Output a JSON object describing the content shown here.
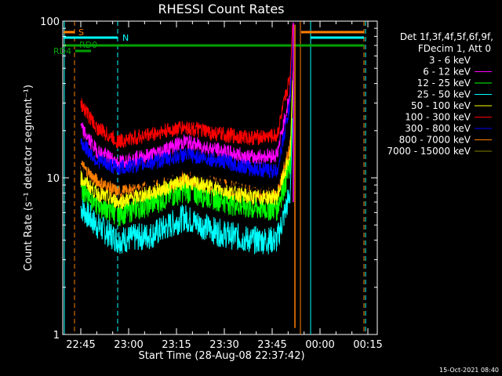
{
  "chart_data": {
    "type": "line",
    "title": "RHESSI Count Rates",
    "xlabel": "Start Time (28-Aug-08 22:37:42)",
    "ylabel": "Count Rate (s⁻¹ detector segment⁻¹)",
    "y_scale": "log",
    "ylim": [
      1,
      100
    ],
    "y_ticks": [
      {
        "value": 1,
        "label": "1"
      },
      {
        "value": 10,
        "label": "10"
      },
      {
        "value": 100,
        "label": "100"
      }
    ],
    "x_ticks": [
      "22:45",
      "23:00",
      "23:15",
      "23:30",
      "23:45",
      "00:00",
      "00:15"
    ],
    "legend_header": [
      "Det 1f,3f,4f,5f,6f,9f,",
      "FDecim 1, Att 0"
    ],
    "series": [
      {
        "name": "3 - 6 keV",
        "color": "#000000",
        "points": [
          [
            0.03,
            11
          ],
          [
            0.1,
            8
          ],
          [
            0.2,
            7
          ],
          [
            0.35,
            8.5
          ],
          [
            0.5,
            11
          ],
          [
            0.65,
            9
          ],
          [
            0.8,
            8
          ],
          [
            0.92,
            9
          ],
          [
            0.98,
            20
          ]
        ]
      },
      {
        "name": "6 - 12 keV",
        "color": "#ff00ff",
        "points": [
          [
            0.03,
            21
          ],
          [
            0.1,
            15
          ],
          [
            0.2,
            12.5
          ],
          [
            0.35,
            14
          ],
          [
            0.5,
            17
          ],
          [
            0.65,
            15
          ],
          [
            0.8,
            13.5
          ],
          [
            0.92,
            14
          ],
          [
            0.98,
            35
          ]
        ]
      },
      {
        "name": "12 - 25 keV",
        "color": "#00ff00",
        "points": [
          [
            0.03,
            9
          ],
          [
            0.1,
            7
          ],
          [
            0.2,
            6
          ],
          [
            0.35,
            7
          ],
          [
            0.5,
            8.5
          ],
          [
            0.65,
            7.5
          ],
          [
            0.8,
            6.5
          ],
          [
            0.92,
            6.5
          ],
          [
            0.98,
            12
          ]
        ]
      },
      {
        "name": "25 - 50 keV",
        "color": "#00ffff",
        "points": [
          [
            0.03,
            6.5
          ],
          [
            0.1,
            5
          ],
          [
            0.2,
            4
          ],
          [
            0.35,
            4.3
          ],
          [
            0.5,
            5.6
          ],
          [
            0.65,
            4.5
          ],
          [
            0.8,
            4
          ],
          [
            0.92,
            4
          ],
          [
            0.98,
            8
          ]
        ]
      },
      {
        "name": "50 - 100 keV",
        "color": "#ffff00",
        "points": [
          [
            0.03,
            10
          ],
          [
            0.1,
            8
          ],
          [
            0.2,
            7
          ],
          [
            0.35,
            8
          ],
          [
            0.5,
            9.5
          ],
          [
            0.65,
            8.5
          ],
          [
            0.8,
            7.5
          ],
          [
            0.92,
            7.5
          ],
          [
            0.98,
            14
          ]
        ]
      },
      {
        "name": "100 - 300 keV",
        "color": "#ff0000",
        "points": [
          [
            0.03,
            30
          ],
          [
            0.1,
            21
          ],
          [
            0.2,
            17
          ],
          [
            0.35,
            19
          ],
          [
            0.5,
            21
          ],
          [
            0.65,
            19
          ],
          [
            0.8,
            18
          ],
          [
            0.92,
            18.5
          ],
          [
            0.98,
            45
          ]
        ]
      },
      {
        "name": "300 - 800 keV",
        "color": "#0000ff",
        "points": [
          [
            0.03,
            17
          ],
          [
            0.1,
            13
          ],
          [
            0.2,
            11.5
          ],
          [
            0.35,
            12.5
          ],
          [
            0.5,
            14
          ],
          [
            0.65,
            13
          ],
          [
            0.8,
            11.5
          ],
          [
            0.92,
            11
          ],
          [
            0.98,
            30
          ]
        ]
      },
      {
        "name": "800 - 7000 keV",
        "color": "#ff8000",
        "points": [
          [
            0.03,
            12
          ],
          [
            0.1,
            9.5
          ],
          [
            0.2,
            8
          ],
          [
            0.35,
            8.5
          ],
          [
            0.5,
            10
          ],
          [
            0.65,
            9
          ],
          [
            0.8,
            8
          ],
          [
            0.92,
            7.8
          ],
          [
            0.98,
            16
          ]
        ]
      },
      {
        "name": "7000 - 15000 keV",
        "color": "#808000",
        "points": []
      }
    ],
    "flags": [
      {
        "label": "S",
        "color": "#ff8000"
      },
      {
        "label": "N",
        "color": "#00ffff"
      },
      {
        "label": "RD0",
        "color": "#00a000"
      },
      {
        "label": "RD4",
        "color": "#00a000"
      }
    ]
  },
  "timestamp": "15-Oct-2021 08:40"
}
